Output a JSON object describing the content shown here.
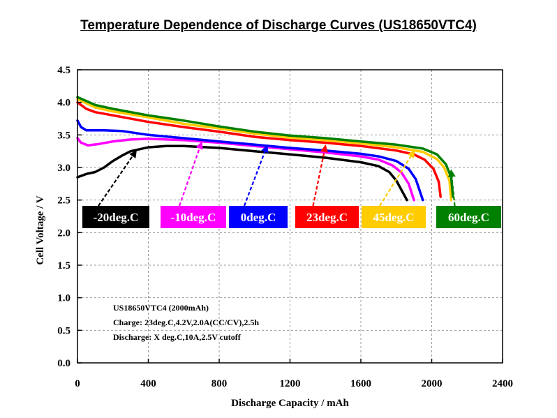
{
  "chart_data": {
    "type": "line",
    "title": "Temperature Dependence of Discharge Curves (US18650VTC4)",
    "xlabel": "Discharge Capacity / mAh",
    "ylabel": "Cell Voltage / V",
    "xlim": [
      0,
      2400
    ],
    "ylim": [
      0.0,
      4.5
    ],
    "x_ticks": [
      "0",
      "400",
      "800",
      "1200",
      "1600",
      "2000",
      "2400"
    ],
    "y_ticks": [
      "0.0",
      "0.5",
      "1.0",
      "1.5",
      "2.0",
      "2.5",
      "3.0",
      "3.5",
      "4.0",
      "4.5"
    ],
    "grid": "dashed",
    "series": [
      {
        "name": "-20deg.C",
        "color": "#000000",
        "points": [
          [
            0,
            2.85
          ],
          [
            50,
            2.9
          ],
          [
            100,
            2.93
          ],
          [
            150,
            3.0
          ],
          [
            200,
            3.1
          ],
          [
            250,
            3.18
          ],
          [
            300,
            3.25
          ],
          [
            400,
            3.31
          ],
          [
            500,
            3.33
          ],
          [
            600,
            3.33
          ],
          [
            800,
            3.3
          ],
          [
            1000,
            3.25
          ],
          [
            1200,
            3.2
          ],
          [
            1400,
            3.15
          ],
          [
            1600,
            3.08
          ],
          [
            1700,
            3.02
          ],
          [
            1760,
            2.93
          ],
          [
            1800,
            2.8
          ],
          [
            1830,
            2.65
          ],
          [
            1860,
            2.5
          ]
        ]
      },
      {
        "name": "-10deg.C",
        "color": "#ff00ff",
        "points": [
          [
            0,
            3.45
          ],
          [
            20,
            3.38
          ],
          [
            60,
            3.34
          ],
          [
            120,
            3.36
          ],
          [
            200,
            3.4
          ],
          [
            300,
            3.43
          ],
          [
            400,
            3.44
          ],
          [
            600,
            3.42
          ],
          [
            800,
            3.38
          ],
          [
            1000,
            3.33
          ],
          [
            1200,
            3.28
          ],
          [
            1400,
            3.23
          ],
          [
            1600,
            3.17
          ],
          [
            1700,
            3.12
          ],
          [
            1780,
            3.03
          ],
          [
            1830,
            2.92
          ],
          [
            1870,
            2.75
          ],
          [
            1900,
            2.5
          ]
        ]
      },
      {
        "name": "0deg.C",
        "color": "#0000ff",
        "points": [
          [
            0,
            3.72
          ],
          [
            20,
            3.62
          ],
          [
            50,
            3.57
          ],
          [
            150,
            3.57
          ],
          [
            250,
            3.56
          ],
          [
            400,
            3.5
          ],
          [
            600,
            3.45
          ],
          [
            800,
            3.4
          ],
          [
            1000,
            3.35
          ],
          [
            1200,
            3.3
          ],
          [
            1400,
            3.26
          ],
          [
            1600,
            3.21
          ],
          [
            1700,
            3.17
          ],
          [
            1800,
            3.1
          ],
          [
            1870,
            2.98
          ],
          [
            1910,
            2.82
          ],
          [
            1950,
            2.5
          ]
        ]
      },
      {
        "name": "23deg.C",
        "color": "#ff0000",
        "points": [
          [
            0,
            4.0
          ],
          [
            50,
            3.9
          ],
          [
            100,
            3.85
          ],
          [
            200,
            3.8
          ],
          [
            400,
            3.7
          ],
          [
            600,
            3.62
          ],
          [
            800,
            3.55
          ],
          [
            1000,
            3.47
          ],
          [
            1200,
            3.42
          ],
          [
            1400,
            3.38
          ],
          [
            1600,
            3.33
          ],
          [
            1800,
            3.26
          ],
          [
            1900,
            3.2
          ],
          [
            1960,
            3.12
          ],
          [
            2010,
            2.98
          ],
          [
            2040,
            2.78
          ],
          [
            2050,
            2.55
          ]
        ]
      },
      {
        "name": "45deg.C",
        "color": "#ffcc00",
        "points": [
          [
            0,
            4.05
          ],
          [
            100,
            3.92
          ],
          [
            200,
            3.86
          ],
          [
            400,
            3.77
          ],
          [
            600,
            3.67
          ],
          [
            800,
            3.6
          ],
          [
            1000,
            3.52
          ],
          [
            1200,
            3.46
          ],
          [
            1400,
            3.42
          ],
          [
            1600,
            3.37
          ],
          [
            1800,
            3.31
          ],
          [
            1950,
            3.24
          ],
          [
            2030,
            3.13
          ],
          [
            2070,
            3.0
          ],
          [
            2100,
            2.8
          ],
          [
            2110,
            2.5
          ]
        ]
      },
      {
        "name": "60deg.C",
        "color": "#008000",
        "points": [
          [
            0,
            4.08
          ],
          [
            100,
            3.96
          ],
          [
            200,
            3.9
          ],
          [
            400,
            3.8
          ],
          [
            600,
            3.72
          ],
          [
            800,
            3.63
          ],
          [
            1000,
            3.55
          ],
          [
            1200,
            3.49
          ],
          [
            1400,
            3.45
          ],
          [
            1600,
            3.4
          ],
          [
            1800,
            3.35
          ],
          [
            1950,
            3.29
          ],
          [
            2030,
            3.2
          ],
          [
            2080,
            3.05
          ],
          [
            2110,
            2.85
          ],
          [
            2120,
            2.55
          ]
        ]
      }
    ],
    "temperature_tags": [
      {
        "label": "-20deg.C",
        "color": "#000000",
        "arrow_to": [
          330,
          3.25
        ]
      },
      {
        "label": "-10deg.C",
        "color": "#ff00ff",
        "arrow_to": [
          700,
          3.38
        ]
      },
      {
        "label": "0deg.C",
        "color": "#0000ff",
        "arrow_to": [
          1070,
          3.33
        ]
      },
      {
        "label": "23deg.C",
        "color": "#ff0000",
        "arrow_to": [
          1400,
          3.33
        ]
      },
      {
        "label": "45deg.C",
        "color": "#ffcc00",
        "arrow_to": [
          1900,
          3.25
        ]
      },
      {
        "label": "60deg.C",
        "color": "#008000",
        "arrow_to": [
          2110,
          2.95
        ]
      }
    ],
    "annotation": [
      "US18650VTC4 (2000mAh)",
      "Charge: 23deg.C,4.2V,2.0A(CC/CV),2.5h",
      "Discharge: X deg.C,10A,2.5V cutoff"
    ]
  }
}
